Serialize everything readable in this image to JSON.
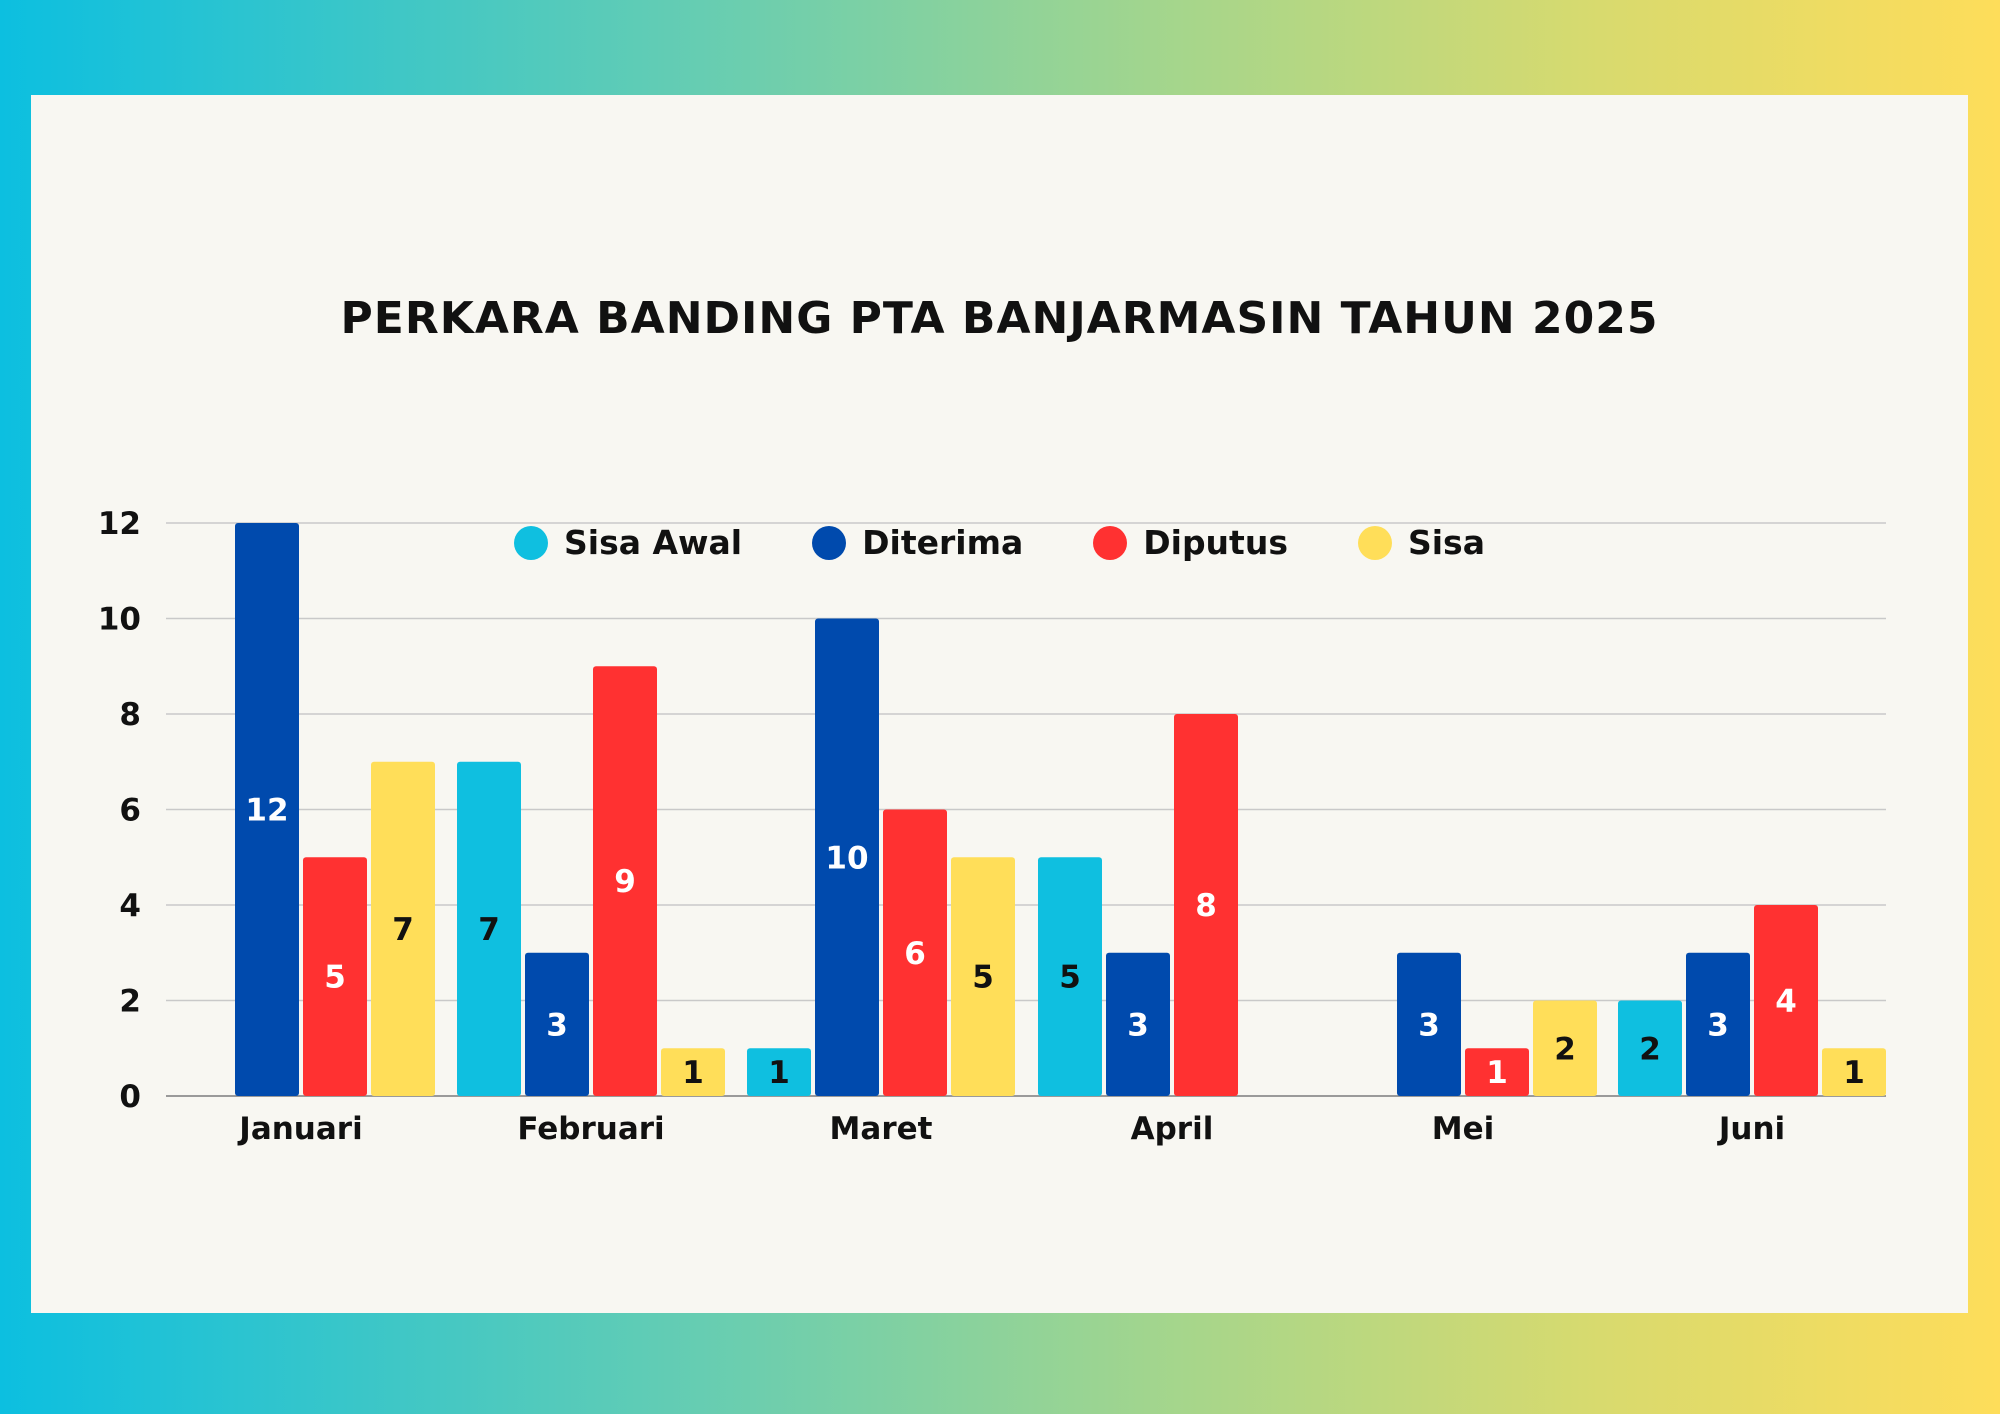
{
  "chart_data": {
    "type": "bar",
    "title": "PERKARA BANDING PTA BANJARMASIN TAHUN 2025",
    "categories": [
      "Januari",
      "Februari",
      "Maret",
      "April",
      "Mei",
      "Juni"
    ],
    "series": [
      {
        "name": "Sisa Awal",
        "color": "#0fbfe0",
        "label_color": "#111111",
        "values": [
          0,
          7,
          1,
          5,
          0,
          2
        ]
      },
      {
        "name": "Diterima",
        "color": "#004aad",
        "label_color": "#ffffff",
        "values": [
          12,
          3,
          10,
          3,
          3,
          3
        ]
      },
      {
        "name": "Diputus",
        "color": "#ff3131",
        "label_color": "#ffffff",
        "values": [
          5,
          9,
          6,
          8,
          1,
          4
        ]
      },
      {
        "name": "Sisa",
        "color": "#ffde59",
        "label_color": "#111111",
        "values": [
          7,
          1,
          5,
          0,
          2,
          1
        ]
      }
    ],
    "ylim": [
      0,
      12
    ],
    "yticks": [
      "0",
      "2",
      "4",
      "6",
      "8",
      "10",
      "12"
    ],
    "grid": true,
    "legend_position": "top-center"
  }
}
